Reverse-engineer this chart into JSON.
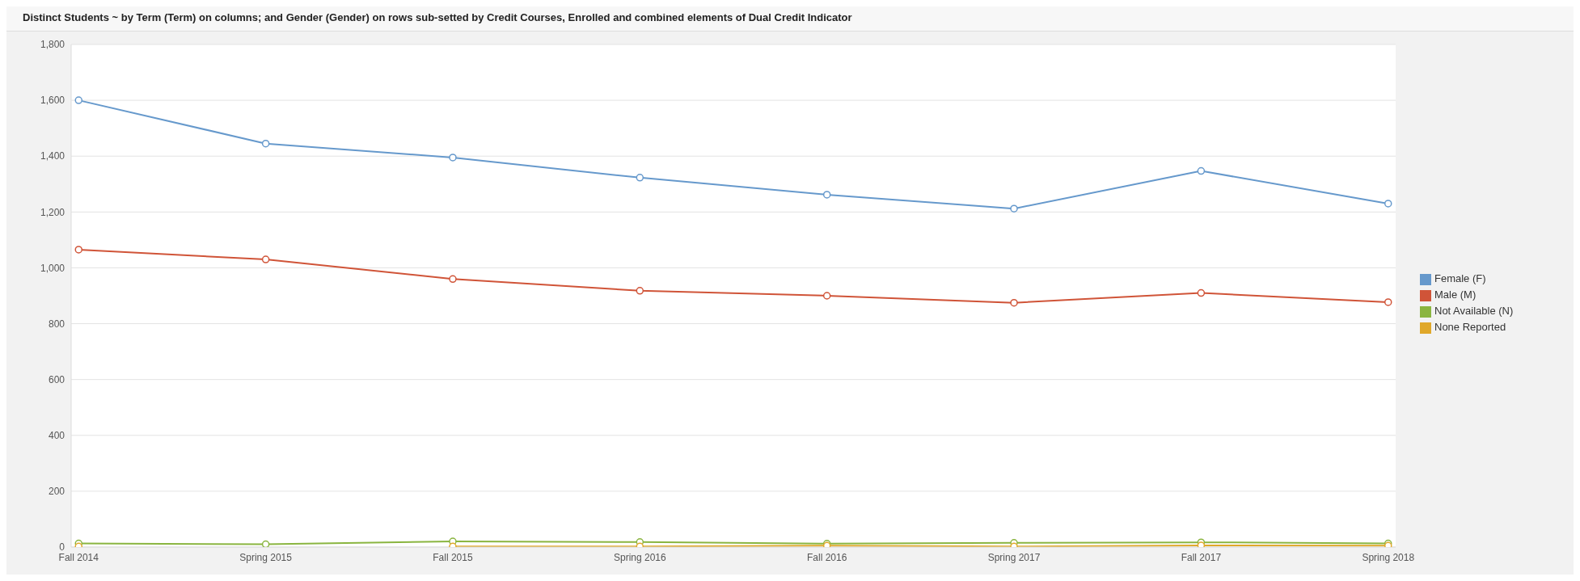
{
  "chart_data": {
    "type": "line",
    "title": "Distinct Students ~ by Term (Term) on columns; and Gender (Gender) on rows sub-setted by Credit Courses, Enrolled and combined elements of Dual Credit Indicator",
    "categories": [
      "Fall 2014",
      "Spring 2015",
      "Fall 2015",
      "Spring 2016",
      "Fall 2016",
      "Spring 2017",
      "Fall 2017",
      "Spring 2018"
    ],
    "series": [
      {
        "name": "Female (F)",
        "color": "#6699cc",
        "values": [
          1600,
          1445,
          1395,
          1323,
          1262,
          1212,
          1347,
          1230
        ]
      },
      {
        "name": "Male (M)",
        "color": "#d05438",
        "values": [
          1065,
          1030,
          960,
          918,
          900,
          875,
          910,
          877
        ]
      },
      {
        "name": "Not Available (N)",
        "color": "#8ab540",
        "values": [
          13,
          10,
          20,
          18,
          12,
          15,
          17,
          13
        ]
      },
      {
        "name": "None Reported",
        "color": "#e0a82a",
        "values": [
          2,
          null,
          2,
          2,
          5,
          2,
          6,
          5
        ]
      }
    ],
    "ylim": [
      0,
      1800
    ],
    "yticks": [
      0,
      200,
      400,
      600,
      800,
      {
        "value": 1000,
        "label": "1,000"
      },
      {
        "value": 1200,
        "label": "1,200"
      },
      {
        "value": 1400,
        "label": "1,400"
      },
      {
        "value": 1600,
        "label": "1,600"
      },
      {
        "value": 1800,
        "label": "1,800"
      }
    ],
    "grid": "y",
    "legend": "right",
    "marker": "circle",
    "line_style": "solid"
  }
}
